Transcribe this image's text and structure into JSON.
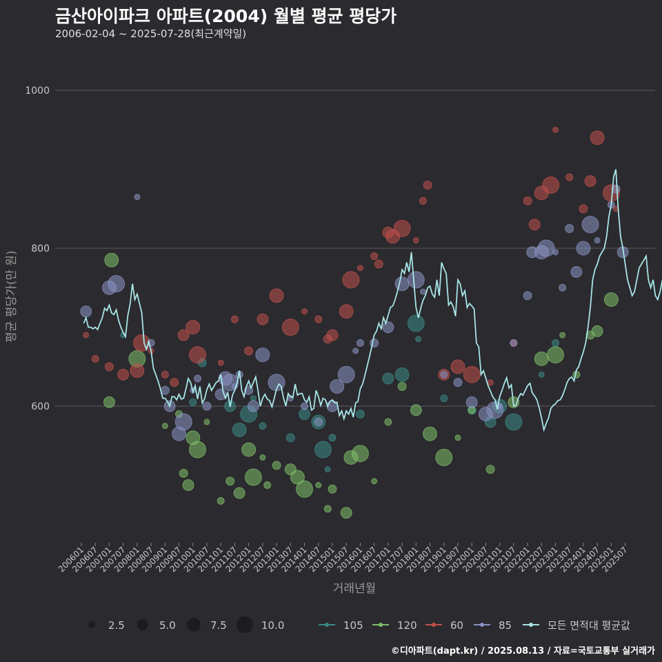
{
  "chart_data": {
    "type": "scatter",
    "title": "금산아이파크 아파트(2004) 월별 평균 평당가",
    "subtitle": "2006-02-04 ~ 2025-07-28(최근계약일)",
    "xlabel": "거래년월",
    "ylabel": "평균 평당가(만 원)",
    "ylim": [
      430,
      1040
    ],
    "yticks": [
      600,
      800,
      1000
    ],
    "xticks": [
      "200601",
      "200607",
      "200701",
      "200707",
      "200801",
      "200807",
      "200901",
      "200907",
      "201001",
      "201007",
      "201101",
      "201107",
      "201201",
      "201207",
      "201301",
      "201307",
      "201401",
      "201407",
      "201501",
      "201507",
      "201601",
      "201607",
      "201701",
      "201707",
      "201801",
      "201807",
      "201901",
      "201907",
      "202001",
      "202007",
      "202101",
      "202107",
      "202201",
      "202207",
      "202301",
      "202307",
      "202401",
      "202407",
      "202501",
      "202507"
    ],
    "grid": "horizontal",
    "legend_position": "bottom",
    "size_legend": {
      "values": [
        "2.5",
        "5.0",
        "7.5",
        "10.0"
      ]
    },
    "series": [
      {
        "name": "105",
        "color": "#3a8a86",
        "points": [
          [
            "2007-07",
            690
          ],
          [
            "2010-01",
            605
          ],
          [
            "2010-05",
            655
          ],
          [
            "2011-05",
            600
          ],
          [
            "2011-09",
            570
          ],
          [
            "2012-01",
            590
          ],
          [
            "2012-03",
            610
          ],
          [
            "2012-07",
            575
          ],
          [
            "2013-07",
            560
          ],
          [
            "2014-01",
            590
          ],
          [
            "2014-07",
            580
          ],
          [
            "2014-09",
            545
          ],
          [
            "2014-11",
            520
          ],
          [
            "2015-01",
            560
          ],
          [
            "2016-01",
            590
          ],
          [
            "2017-01",
            635
          ],
          [
            "2017-07",
            640
          ],
          [
            "2018-01",
            705
          ],
          [
            "2018-02",
            685
          ],
          [
            "2019-01",
            610
          ],
          [
            "2020-01",
            595
          ],
          [
            "2020-09",
            580
          ],
          [
            "2021-01",
            600
          ],
          [
            "2021-07",
            580
          ],
          [
            "2022-07",
            640
          ],
          [
            "2023-01",
            680
          ]
        ]
      },
      {
        "name": "120",
        "color": "#7fbf6a",
        "points": [
          [
            "2007-01",
            605
          ],
          [
            "2007-02",
            785
          ],
          [
            "2008-01",
            660
          ],
          [
            "2009-01",
            575
          ],
          [
            "2009-07",
            590
          ],
          [
            "2009-09",
            515
          ],
          [
            "2009-11",
            500
          ],
          [
            "2010-01",
            560
          ],
          [
            "2010-03",
            545
          ],
          [
            "2010-07",
            580
          ],
          [
            "2011-01",
            480
          ],
          [
            "2011-05",
            505
          ],
          [
            "2011-09",
            490
          ],
          [
            "2012-01",
            545
          ],
          [
            "2012-03",
            510
          ],
          [
            "2012-07",
            535
          ],
          [
            "2012-09",
            500
          ],
          [
            "2013-01",
            525
          ],
          [
            "2013-07",
            520
          ],
          [
            "2013-10",
            510
          ],
          [
            "2014-01",
            495
          ],
          [
            "2014-07",
            500
          ],
          [
            "2014-11",
            470
          ],
          [
            "2015-01",
            495
          ],
          [
            "2015-07",
            465
          ],
          [
            "2015-09",
            535
          ],
          [
            "2016-01",
            540
          ],
          [
            "2016-07",
            505
          ],
          [
            "2017-01",
            580
          ],
          [
            "2017-07",
            625
          ],
          [
            "2018-01",
            595
          ],
          [
            "2018-07",
            565
          ],
          [
            "2019-01",
            535
          ],
          [
            "2019-07",
            560
          ],
          [
            "2020-01",
            595
          ],
          [
            "2020-09",
            520
          ],
          [
            "2021-07",
            605
          ],
          [
            "2022-07",
            660
          ],
          [
            "2023-01",
            665
          ],
          [
            "2023-04",
            690
          ],
          [
            "2023-10",
            640
          ],
          [
            "2024-04",
            690
          ],
          [
            "2024-07",
            695
          ],
          [
            "2025-01",
            735
          ]
        ]
      },
      {
        "name": "60",
        "color": "#c0504d",
        "points": [
          [
            "2006-03",
            690
          ],
          [
            "2006-07",
            660
          ],
          [
            "2007-01",
            650
          ],
          [
            "2007-07",
            640
          ],
          [
            "2008-01",
            645
          ],
          [
            "2008-03",
            680
          ],
          [
            "2008-07",
            670
          ],
          [
            "2009-01",
            640
          ],
          [
            "2009-05",
            630
          ],
          [
            "2009-09",
            690
          ],
          [
            "2010-01",
            700
          ],
          [
            "2010-03",
            665
          ],
          [
            "2011-01",
            655
          ],
          [
            "2011-07",
            710
          ],
          [
            "2012-01",
            670
          ],
          [
            "2012-07",
            710
          ],
          [
            "2013-01",
            740
          ],
          [
            "2013-07",
            700
          ],
          [
            "2014-01",
            720
          ],
          [
            "2014-07",
            710
          ],
          [
            "2014-11",
            685
          ],
          [
            "2015-01",
            690
          ],
          [
            "2015-07",
            720
          ],
          [
            "2015-09",
            760
          ],
          [
            "2016-01",
            775
          ],
          [
            "2016-07",
            790
          ],
          [
            "2016-09",
            780
          ],
          [
            "2017-01",
            820
          ],
          [
            "2017-03",
            815
          ],
          [
            "2017-07",
            825
          ],
          [
            "2018-01",
            810
          ],
          [
            "2018-04",
            860
          ],
          [
            "2018-06",
            880
          ],
          [
            "2019-01",
            640
          ],
          [
            "2019-07",
            650
          ],
          [
            "2020-01",
            640
          ],
          [
            "2020-09",
            630
          ],
          [
            "2021-07",
            680
          ],
          [
            "2022-01",
            860
          ],
          [
            "2022-04",
            830
          ],
          [
            "2022-07",
            870
          ],
          [
            "2022-11",
            880
          ],
          [
            "2023-01",
            950
          ],
          [
            "2023-07",
            890
          ],
          [
            "2024-01",
            850
          ],
          [
            "2024-04",
            885
          ],
          [
            "2024-07",
            940
          ],
          [
            "2025-01",
            870
          ],
          [
            "2025-03",
            850
          ]
        ]
      },
      {
        "name": "85",
        "color": "#8a94c4",
        "points": [
          [
            "2006-03",
            720
          ],
          [
            "2007-01",
            750
          ],
          [
            "2007-04",
            755
          ],
          [
            "2008-01",
            865
          ],
          [
            "2008-07",
            680
          ],
          [
            "2009-01",
            620
          ],
          [
            "2009-03",
            600
          ],
          [
            "2009-07",
            565
          ],
          [
            "2009-09",
            580
          ],
          [
            "2010-01",
            620
          ],
          [
            "2010-03",
            635
          ],
          [
            "2010-07",
            600
          ],
          [
            "2011-01",
            615
          ],
          [
            "2011-03",
            635
          ],
          [
            "2011-05",
            630
          ],
          [
            "2011-07",
            625
          ],
          [
            "2011-09",
            640
          ],
          [
            "2012-01",
            620
          ],
          [
            "2012-03",
            600
          ],
          [
            "2012-07",
            665
          ],
          [
            "2013-01",
            630
          ],
          [
            "2013-07",
            610
          ],
          [
            "2014-01",
            600
          ],
          [
            "2014-07",
            580
          ],
          [
            "2015-01",
            600
          ],
          [
            "2015-03",
            625
          ],
          [
            "2015-07",
            640
          ],
          [
            "2015-11",
            670
          ],
          [
            "2016-01",
            680
          ],
          [
            "2016-07",
            680
          ],
          [
            "2017-01",
            700
          ],
          [
            "2017-07",
            755
          ],
          [
            "2018-01",
            760
          ],
          [
            "2018-04",
            745
          ],
          [
            "2019-01",
            640
          ],
          [
            "2019-07",
            630
          ],
          [
            "2020-01",
            605
          ],
          [
            "2020-07",
            590
          ],
          [
            "2020-11",
            595
          ],
          [
            "2021-01",
            600
          ],
          [
            "2021-07",
            680
          ],
          [
            "2022-01",
            740
          ],
          [
            "2022-03",
            795
          ],
          [
            "2022-07",
            795
          ],
          [
            "2022-09",
            800
          ],
          [
            "2023-01",
            795
          ],
          [
            "2023-04",
            750
          ],
          [
            "2023-07",
            825
          ],
          [
            "2023-10",
            770
          ],
          [
            "2024-01",
            800
          ],
          [
            "2024-04",
            830
          ],
          [
            "2024-07",
            810
          ],
          [
            "2025-01",
            855
          ],
          [
            "2025-03",
            875
          ],
          [
            "2025-06",
            795
          ]
        ]
      },
      {
        "name": "모든 면적대 평균값",
        "color": "#a8e6e8",
        "line": [
          705,
          712,
          700,
          700,
          698,
          700,
          697,
          705,
          712,
          724,
          721,
          728,
          718,
          716,
          722,
          709,
          700,
          693,
          688,
          715,
          730,
          755,
          735,
          742,
          730,
          718,
          680,
          672,
          682,
          670,
          648,
          640,
          632,
          622,
          610,
          610,
          606,
          600,
          612,
          612,
          608,
          615,
          609,
          610,
          622,
          635,
          630,
          618,
          626,
          609,
          625,
          604,
          609,
          621,
          628,
          620,
          625,
          630,
          632,
          640,
          618,
          610,
          617,
          599,
          614,
          620,
          629,
          645,
          620,
          612,
          625,
          632,
          623,
          630,
          637,
          620,
          600,
          610,
          615,
          609,
          607,
          599,
          610,
          622,
          628,
          625,
          610,
          600,
          616,
          612,
          611,
          628,
          614,
          616,
          616,
          608,
          605,
          612,
          595,
          597,
          620,
          612,
          601,
          610,
          608,
          600,
          606,
          608,
          604,
          605,
          588,
          594,
          584,
          594,
          590,
          597,
          586,
          604,
          606,
          622,
          628,
          639,
          651,
          663,
          676,
          690,
          695,
          705,
          698,
          712,
          705,
          715,
          725,
          727,
          735,
          745,
          757,
          773,
          768,
          782,
          770,
          795,
          760,
          725,
          712,
          724,
          734,
          740,
          750,
          752,
          742,
          738,
          760,
          740,
          782,
          774,
          768,
          728,
          732,
          726,
          714,
          760,
          755,
          740,
          746,
          725,
          730,
          727,
          723,
          680,
          675,
          640,
          645,
          636,
          626,
          619,
          612,
          608,
          596,
          612,
          620,
          629,
          636,
          623,
          627,
          600,
          601,
          610,
          616,
          614,
          620,
          626,
          629,
          617,
          613,
          608,
          598,
          585,
          570,
          578,
          585,
          597,
          601,
          603,
          607,
          608,
          613,
          621,
          630,
          635,
          637,
          632,
          646,
          650,
          660,
          669,
          680,
          700,
          725,
          760,
          773,
          780,
          790,
          795,
          800,
          815,
          840,
          855,
          890,
          900,
          850,
          815,
          800,
          780,
          760,
          750,
          740,
          745,
          760,
          775,
          780,
          785,
          790,
          760,
          750,
          760,
          740,
          735,
          745,
          760,
          770,
          780,
          810,
          830,
          835,
          825,
          820,
          840,
          850,
          820,
          815,
          810,
          805,
          808,
          810,
          815,
          825,
          835,
          840,
          850,
          860
        ]
      }
    ]
  }
}
